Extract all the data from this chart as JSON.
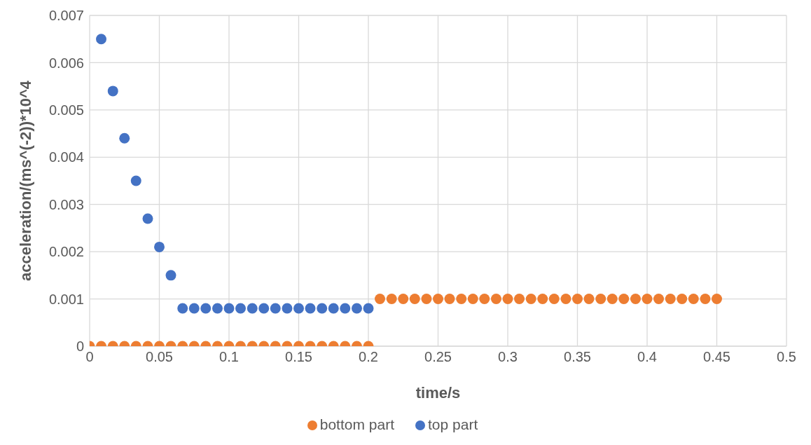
{
  "chart_data": {
    "type": "scatter",
    "xlabel": "time/s",
    "ylabel": "acceleration/(ms^(-2))*10^4",
    "xlim": [
      0,
      0.5
    ],
    "xticks": [
      0,
      0.05,
      0.1,
      0.15,
      0.2,
      0.25,
      0.3,
      0.35,
      0.4,
      0.45,
      0.5
    ],
    "ylim": [
      0,
      0.007
    ],
    "yticks": [
      0,
      0.001,
      0.002,
      0.003,
      0.004,
      0.005,
      0.006,
      0.007
    ],
    "grid": true,
    "legend": "bottom",
    "marker": "circle",
    "series": [
      {
        "name": "top part",
        "color": "#4472c4",
        "x": [
          0.0083,
          0.0167,
          0.025,
          0.0333,
          0.0417,
          0.05,
          0.0583,
          0.0667,
          0.075,
          0.0833,
          0.0917,
          0.1,
          0.1083,
          0.1167,
          0.125,
          0.1333,
          0.1417,
          0.15,
          0.1583,
          0.1667,
          0.175,
          0.1833,
          0.1917,
          0.2
        ],
        "values": [
          0.0065,
          0.0054,
          0.0044,
          0.0035,
          0.0027,
          0.0021,
          0.0015,
          0.0008,
          0.0008,
          0.0008,
          0.0008,
          0.0008,
          0.0008,
          0.0008,
          0.0008,
          0.0008,
          0.0008,
          0.0008,
          0.0008,
          0.0008,
          0.0008,
          0.0008,
          0.0008,
          0.0008
        ]
      },
      {
        "name": "bottom part",
        "color": "#ed7d31",
        "x": [
          0,
          0.0083,
          0.0167,
          0.025,
          0.0333,
          0.0417,
          0.05,
          0.0583,
          0.0667,
          0.075,
          0.0833,
          0.0917,
          0.1,
          0.1083,
          0.1167,
          0.125,
          0.1333,
          0.1417,
          0.15,
          0.1583,
          0.1667,
          0.175,
          0.1833,
          0.1917,
          0.2,
          0.2083,
          0.2167,
          0.225,
          0.2333,
          0.2417,
          0.25,
          0.2583,
          0.2667,
          0.275,
          0.2833,
          0.2917,
          0.3,
          0.3083,
          0.3167,
          0.325,
          0.3333,
          0.3417,
          0.35,
          0.3583,
          0.3667,
          0.375,
          0.3833,
          0.3917,
          0.4,
          0.4083,
          0.4167,
          0.425,
          0.4333,
          0.4417,
          0.45
        ],
        "values": [
          0,
          0,
          0,
          0,
          0,
          0,
          0,
          0,
          0,
          0,
          0,
          0,
          0,
          0,
          0,
          0,
          0,
          0,
          0,
          0,
          0,
          0,
          0,
          0,
          0,
          0.001,
          0.001,
          0.001,
          0.001,
          0.001,
          0.001,
          0.001,
          0.001,
          0.001,
          0.001,
          0.001,
          0.001,
          0.001,
          0.001,
          0.001,
          0.001,
          0.001,
          0.001,
          0.001,
          0.001,
          0.001,
          0.001,
          0.001,
          0.001,
          0.001,
          0.001,
          0.001,
          0.001,
          0.001,
          0.001
        ]
      }
    ]
  }
}
